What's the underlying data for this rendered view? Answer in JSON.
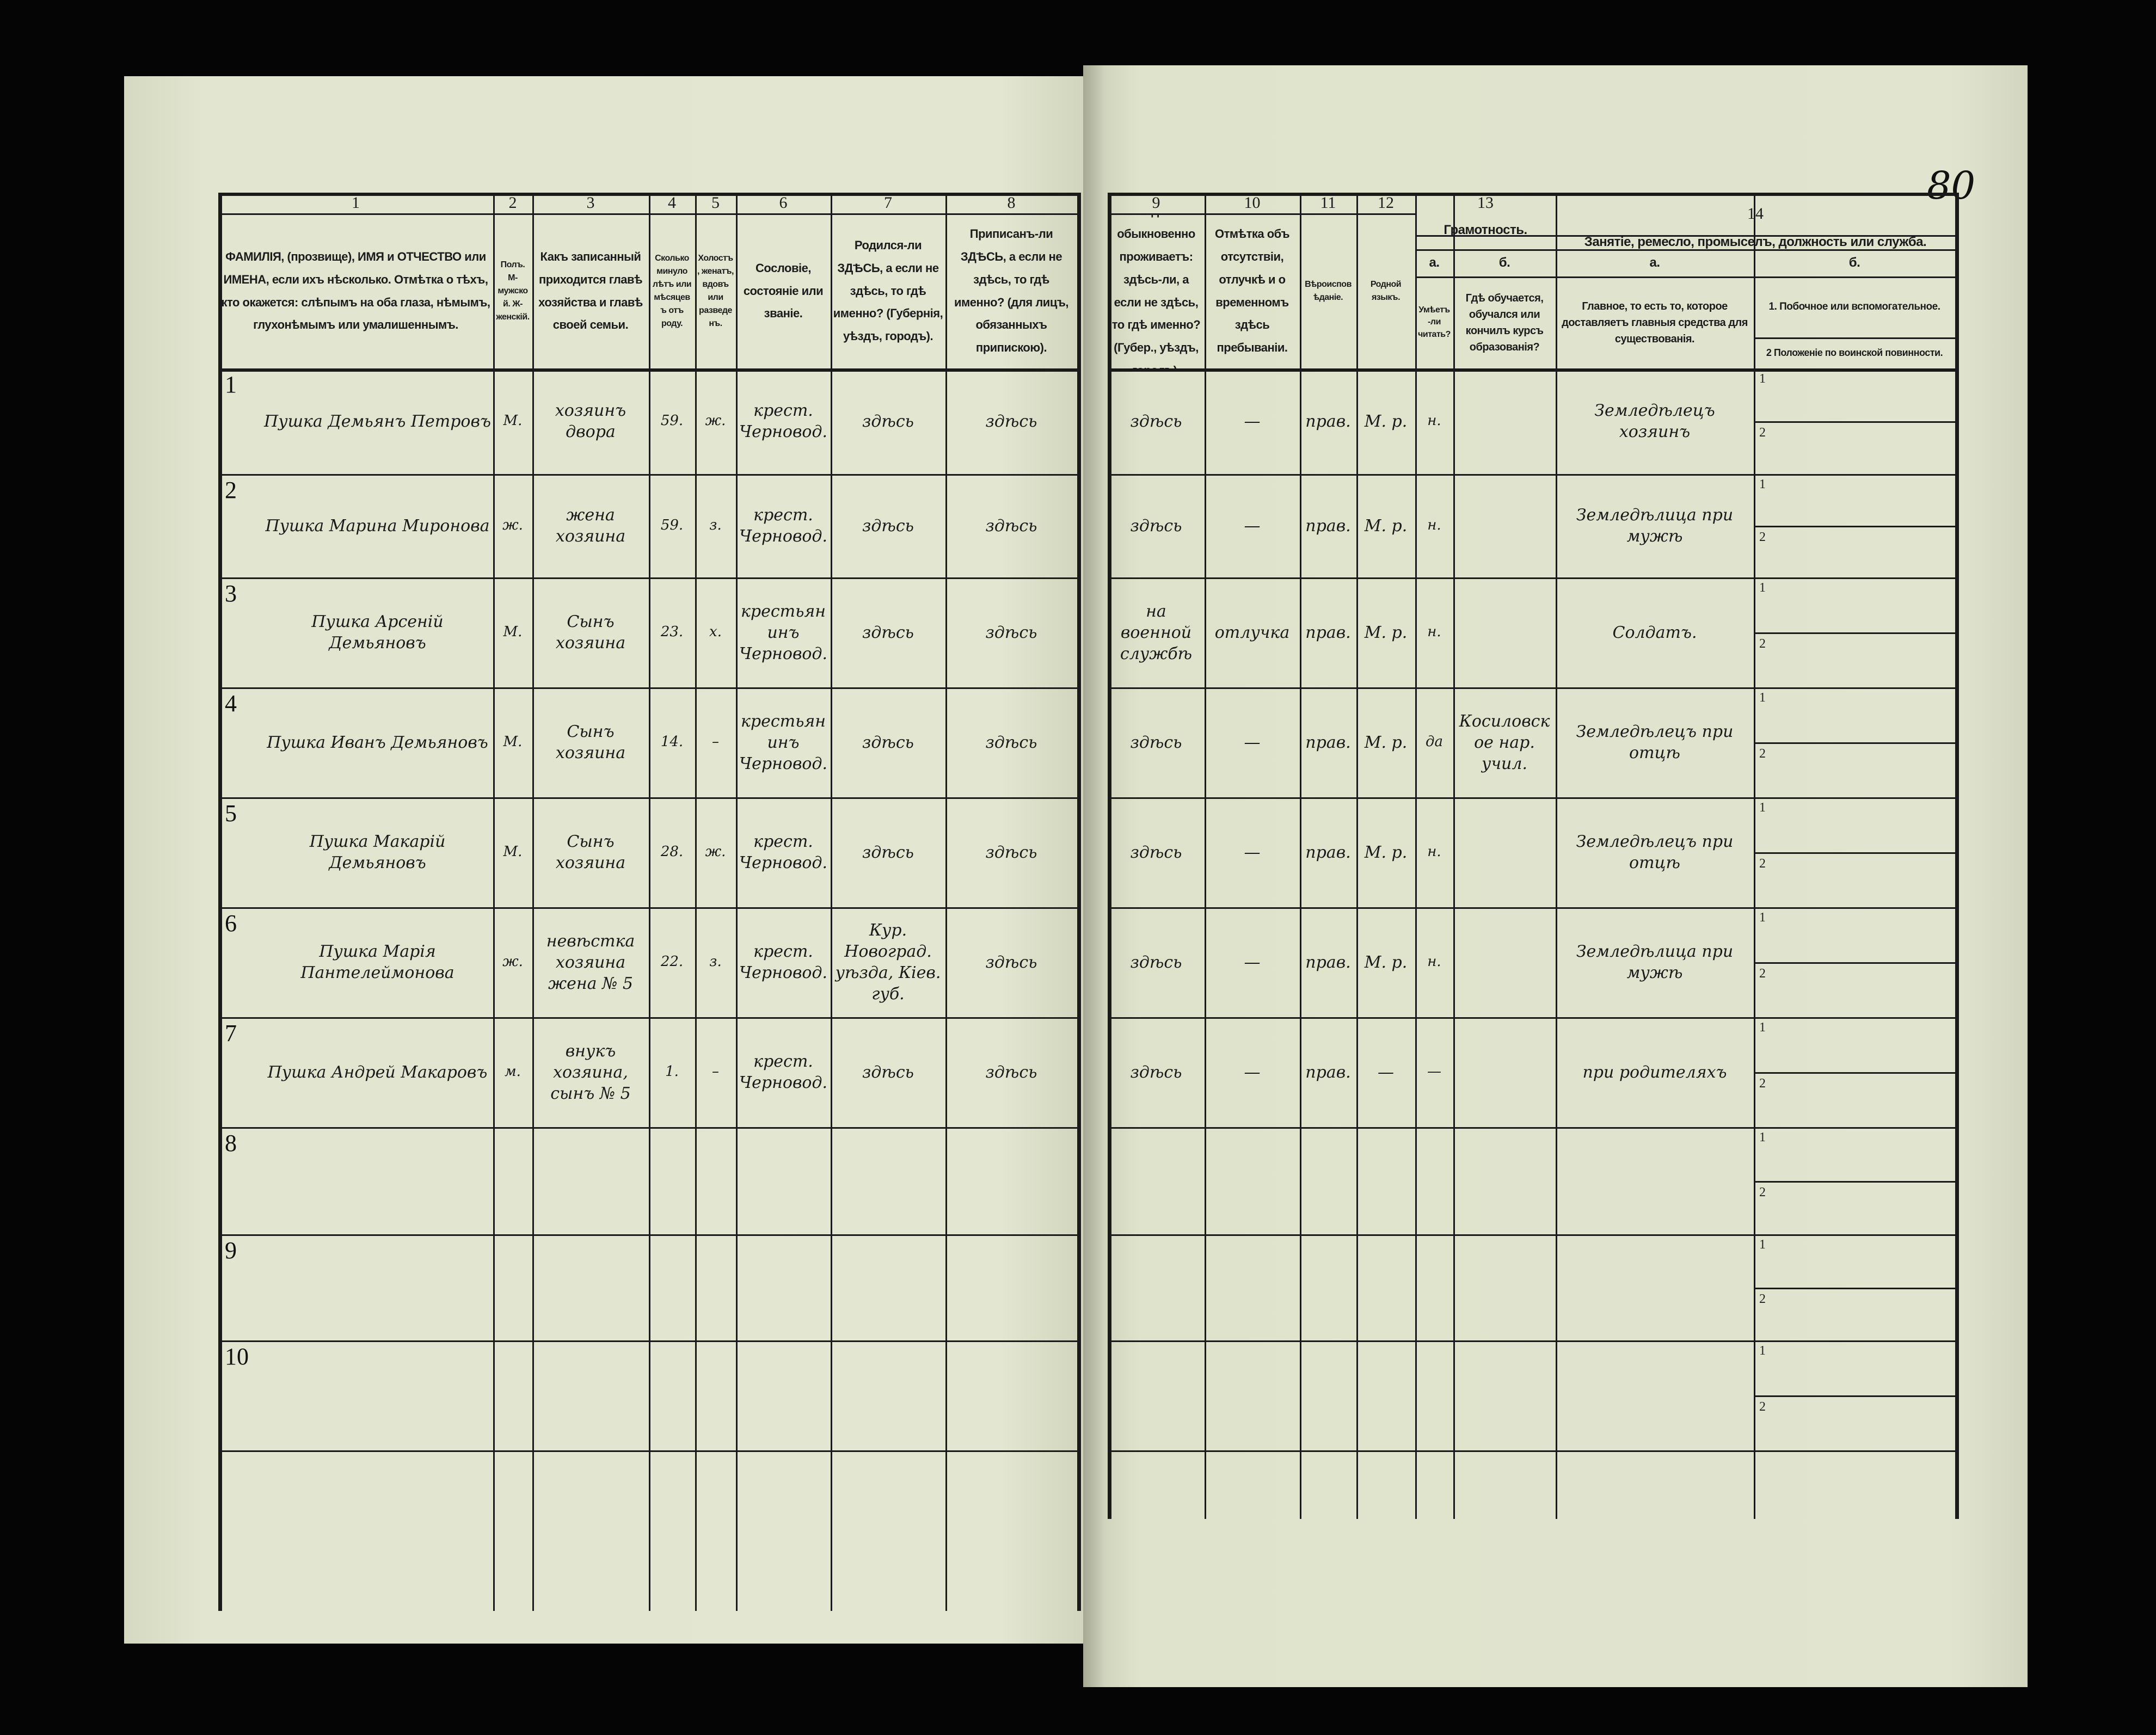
{
  "page_number": "80",
  "header": {
    "columns": [
      {
        "num": "1",
        "text": "ФАМИЛІЯ, (прозвище), ИМЯ и ОТЧЕСТВО или ИМЕНА, если ихъ нѣсколько. Отмѣтка о тѣхъ, кто окажется: слѣпымъ на оба глаза, нѣмымъ, глухонѣмымъ или умалишеннымъ."
      },
      {
        "num": "2",
        "text": "Полъ. М-мужской. Ж-женскій."
      },
      {
        "num": "3",
        "text": "Какъ записанный приходится главѣ хозяйства и главѣ своей семьи."
      },
      {
        "num": "4",
        "text": "Сколько минуло лѣтъ или мѣсяцевъ отъ роду."
      },
      {
        "num": "5",
        "text": "Холостъ, женатъ, вдовъ или разведенъ."
      },
      {
        "num": "6",
        "text": "Сословіе, состояніе или званіе."
      },
      {
        "num": "7",
        "text": "Родился-ли ЗДѢСЬ, а если не здѣсь, то гдѣ именно? (Губернія, уѣздъ, городъ)."
      },
      {
        "num": "8",
        "text": "Приписанъ-ли ЗДѢСЬ, а если не здѣсь, то гдѣ именно? (для лицъ, обязанныхъ припискою)."
      },
      {
        "num": "9",
        "text": "Гдѣ обыкновенно проживаетъ: здѣсь-ли, а если не здѣсь, то гдѣ именно? (Губер., уѣздъ, городъ)."
      },
      {
        "num": "10",
        "text": "Отмѣтка объ отсутствіи, отлучкѣ и о временномъ здѣсь пребываніи."
      },
      {
        "num": "11",
        "text": "Вѣроисповѣданіе."
      },
      {
        "num": "12",
        "text": "Родной языкъ."
      }
    ],
    "col13": {
      "num": "13",
      "title": "Грамотность.",
      "a_label": "а.",
      "a_text": "Умѣетъ-ли читать?",
      "b_label": "б.",
      "b_text": "Гдѣ обучается, обучался или кончилъ курсъ образованія?"
    },
    "col14": {
      "num": "14",
      "title": "Занятіе, ремесло, промыселъ, должность или служба.",
      "a_label": "а.",
      "a_text": "Главное, то есть то, которое доставляетъ главныя средства для существованія.",
      "b_label": "б.",
      "b1_text": "1. Побочное или вспомогательное.",
      "b2_text": "2 Положеніе по воинской повинности."
    }
  },
  "sub_labels": {
    "one": "1",
    "two": "2"
  },
  "rows": [
    {
      "n": "1",
      "name": "Пушка Демьянъ Петровъ",
      "sex": "М.",
      "relation": "хозяинъ двора",
      "age": "59.",
      "marital": "ж.",
      "estate": "крест. Черновод.",
      "born": "здѣсь",
      "registered": "здѣсь",
      "residence": "здѣсь",
      "absence": "—",
      "religion": "прав.",
      "language": "М. р.",
      "lit_a": "н.",
      "lit_b": "",
      "occ_a": "Земледѣлецъ хозяинъ",
      "occ_b1": "",
      "occ_b2": ""
    },
    {
      "n": "2",
      "name": "Пушка Марина Миронова",
      "sex": "ж.",
      "relation": "жена хозяина",
      "age": "59.",
      "marital": "з.",
      "estate": "крест. Черновод.",
      "born": "здѣсь",
      "registered": "здѣсь",
      "residence": "здѣсь",
      "absence": "—",
      "religion": "прав.",
      "language": "М. р.",
      "lit_a": "н.",
      "lit_b": "",
      "occ_a": "Земледѣлица при мужѣ",
      "occ_b1": "",
      "occ_b2": ""
    },
    {
      "n": "3",
      "name": "Пушка Арсеній Демьяновъ",
      "sex": "М.",
      "relation": "Сынъ хозяина",
      "age": "23.",
      "marital": "х.",
      "estate": "крестьянинъ Черновод.",
      "born": "здѣсь",
      "registered": "здѣсь",
      "residence": "на военной службѣ",
      "absence": "отлучка",
      "religion": "прав.",
      "language": "М. р.",
      "lit_a": "н.",
      "lit_b": "",
      "occ_a": "Солдатъ.",
      "occ_b1": "",
      "occ_b2": ""
    },
    {
      "n": "4",
      "name": "Пушка Иванъ Демьяновъ",
      "sex": "М.",
      "relation": "Сынъ хозяина",
      "age": "14.",
      "marital": "–",
      "estate": "крестьянинъ Черновод.",
      "born": "здѣсь",
      "registered": "здѣсь",
      "residence": "здѣсь",
      "absence": "—",
      "religion": "прав.",
      "language": "М. р.",
      "lit_a": "да",
      "lit_b": "Косиловское нар. учил.",
      "occ_a": "Земледѣлецъ при отцѣ",
      "occ_b1": "",
      "occ_b2": ""
    },
    {
      "n": "5",
      "name": "Пушка Макарій Демьяновъ",
      "sex": "М.",
      "relation": "Сынъ хозяина",
      "age": "28.",
      "marital": "ж.",
      "estate": "крест. Черновод.",
      "born": "здѣсь",
      "registered": "здѣсь",
      "residence": "здѣсь",
      "absence": "—",
      "religion": "прав.",
      "language": "М. р.",
      "lit_a": "н.",
      "lit_b": "",
      "occ_a": "Земледѣлецъ при отцѣ",
      "occ_b1": "",
      "occ_b2": ""
    },
    {
      "n": "6",
      "name": "Пушка Марія Пантелеймонова",
      "sex": "ж.",
      "relation": "невѣстка хозяина жена № 5",
      "age": "22.",
      "marital": "з.",
      "estate": "крест. Черновод.",
      "born": "Кур. Новоград. уѣзда, Кіев. губ.",
      "registered": "здѣсь",
      "residence": "здѣсь",
      "absence": "—",
      "religion": "прав.",
      "language": "М. р.",
      "lit_a": "н.",
      "lit_b": "",
      "occ_a": "Земледѣлица при мужѣ",
      "occ_b1": "",
      "occ_b2": ""
    },
    {
      "n": "7",
      "name": "Пушка Андрей Макаровъ",
      "sex": "м.",
      "relation": "внукъ хозяина, сынъ № 5",
      "age": "1.",
      "marital": "–",
      "estate": "крест. Черновод.",
      "born": "здѣсь",
      "registered": "здѣсь",
      "residence": "здѣсь",
      "absence": "—",
      "religion": "прав.",
      "language": "—",
      "lit_a": "—",
      "lit_b": "",
      "occ_a": "при родителяхъ",
      "occ_b1": "",
      "occ_b2": ""
    },
    {
      "n": "8",
      "name": "",
      "sex": "",
      "relation": "",
      "age": "",
      "marital": "",
      "estate": "",
      "born": "",
      "registered": "",
      "residence": "",
      "absence": "",
      "religion": "",
      "language": "",
      "lit_a": "",
      "lit_b": "",
      "occ_a": "",
      "occ_b1": "",
      "occ_b2": ""
    },
    {
      "n": "9",
      "name": "",
      "sex": "",
      "relation": "",
      "age": "",
      "marital": "",
      "estate": "",
      "born": "",
      "registered": "",
      "residence": "",
      "absence": "",
      "religion": "",
      "language": "",
      "lit_a": "",
      "lit_b": "",
      "occ_a": "",
      "occ_b1": "",
      "occ_b2": ""
    },
    {
      "n": "10",
      "name": "",
      "sex": "",
      "relation": "",
      "age": "",
      "marital": "",
      "estate": "",
      "born": "",
      "registered": "",
      "residence": "",
      "absence": "",
      "religion": "",
      "language": "",
      "lit_a": "",
      "lit_b": "",
      "occ_a": "",
      "occ_b1": "",
      "occ_b2": ""
    }
  ]
}
